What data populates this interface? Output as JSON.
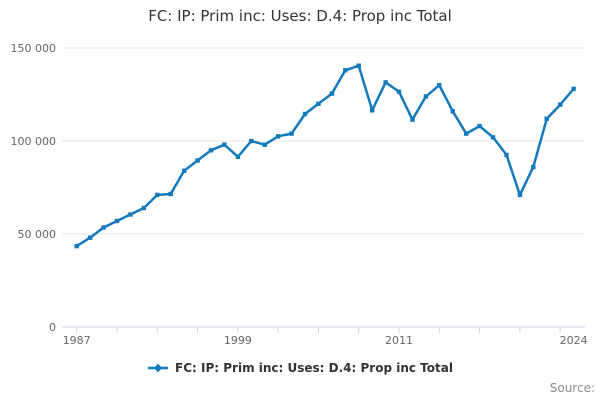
{
  "page": {
    "title": "FC: IP: Prim inc: Uses: D.4: Prop inc Total",
    "source_label": "Source:"
  },
  "legend": {
    "label": "FC: IP: Prim inc: Uses: D.4: Prop inc Total"
  },
  "colors": {
    "series": "#1379bd",
    "grid": "#e6e6e6",
    "axis_line": "#ccd6eb",
    "tick": "#ccd6eb",
    "axis_text": "#666666",
    "title_text": "#333333",
    "legend_text": "#333333",
    "source_text": "#8c8c8c"
  },
  "chart_data": {
    "type": "line",
    "title": "FC: IP: Prim inc: Uses: D.4: Prop inc Total",
    "x": [
      1987,
      1988,
      1989,
      1990,
      1991,
      1992,
      1993,
      1994,
      1995,
      1996,
      1997,
      1998,
      1999,
      2000,
      2001,
      2002,
      2003,
      2004,
      2005,
      2006,
      2007,
      2008,
      2009,
      2010,
      2011,
      2012,
      2013,
      2014,
      2015,
      2016,
      2017,
      2018,
      2019,
      2020,
      2021,
      2022,
      2023,
      2024
    ],
    "series": [
      {
        "name": "FC: IP: Prim inc: Uses: D.4: Prop inc Total",
        "values": [
          43500,
          48000,
          53500,
          57000,
          60500,
          64000,
          71000,
          71500,
          84000,
          89500,
          95000,
          98000,
          91500,
          100000,
          98000,
          102500,
          104000,
          114500,
          120000,
          125500,
          138000,
          140500,
          116500,
          131500,
          126500,
          111500,
          124000,
          130000,
          116000,
          104000,
          108000,
          102000,
          92500,
          71000,
          86000,
          112000,
          119500,
          128000
        ]
      }
    ],
    "xlabel": "",
    "ylabel": "",
    "xlim": [
      1986,
      2025
    ],
    "ylim": [
      0,
      150000
    ],
    "yticks": [
      {
        "value": 0,
        "label": "0"
      },
      {
        "value": 50000,
        "label": "50 000"
      },
      {
        "value": 100000,
        "label": "100 000"
      },
      {
        "value": 150000,
        "label": "150 000"
      }
    ],
    "xticks": [
      1987,
      1990,
      1993,
      1996,
      1999,
      2002,
      2005,
      2008,
      2011,
      2014,
      2017,
      2020,
      2023
    ],
    "xtick_labels": [
      {
        "value": 1987,
        "label": "1987"
      },
      {
        "value": 1999,
        "label": "1999"
      },
      {
        "value": 2011,
        "label": "2011"
      },
      {
        "value": 2024,
        "label": "2024"
      }
    ],
    "grid": "horizontal",
    "legend_position": "bottom",
    "marker": "square"
  }
}
